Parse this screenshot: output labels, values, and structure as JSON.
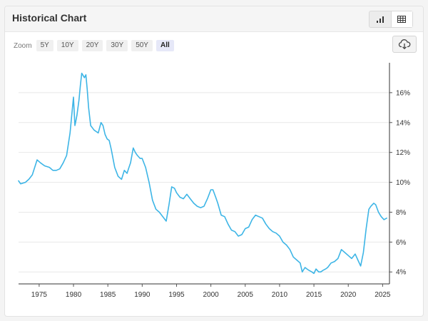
{
  "header": {
    "title": "Historical Chart",
    "bar_view_icon": "bar-chart-icon",
    "table_view_icon": "table-icon"
  },
  "zoom": {
    "label": "Zoom",
    "options": [
      "5Y",
      "10Y",
      "20Y",
      "30Y",
      "50Y",
      "All"
    ],
    "selected": "All"
  },
  "download_icon": "cloud-download-icon",
  "chart_data": {
    "type": "line",
    "title": "",
    "xlabel": "",
    "ylabel": "",
    "xlim": [
      1972,
      2026
    ],
    "ylim": [
      3.2,
      18.0
    ],
    "x_ticks": [
      1975,
      1980,
      1985,
      1990,
      1995,
      2000,
      2005,
      2010,
      2015,
      2020,
      2025
    ],
    "y_ticks": [
      4,
      6,
      8,
      10,
      12,
      14,
      16
    ],
    "y_tick_labels": [
      "4%",
      "6%",
      "8%",
      "10%",
      "12%",
      "14%",
      "16%"
    ],
    "grid": "horizontal",
    "line_color": "#3db5e6",
    "series": [
      {
        "x": [
          1972.0,
          1972.3,
          1973.0,
          1973.5,
          1974.0,
          1974.7,
          1975.2,
          1975.8,
          1976.5,
          1977.0,
          1977.5,
          1978.0,
          1978.5,
          1979.0,
          1979.5,
          1980.0,
          1980.2,
          1980.3,
          1980.5,
          1980.8,
          1981.0,
          1981.2,
          1981.6,
          1981.8,
          1982.0,
          1982.2,
          1982.5,
          1983.0,
          1983.3,
          1983.6,
          1984.0,
          1984.3,
          1984.6,
          1984.9,
          1985.2,
          1985.5,
          1986.0,
          1986.5,
          1987.0,
          1987.4,
          1987.8,
          1988.0,
          1988.3,
          1988.7,
          1989.0,
          1989.3,
          1989.7,
          1990.0,
          1990.5,
          1991.0,
          1991.5,
          1992.0,
          1992.5,
          1993.0,
          1993.5,
          1993.9,
          1994.3,
          1994.7,
          1995.0,
          1995.5,
          1996.0,
          1996.5,
          1997.0,
          1997.5,
          1998.0,
          1998.5,
          1999.0,
          1999.5,
          2000.0,
          2000.3,
          2000.7,
          2001.0,
          2001.5,
          2002.0,
          2002.5,
          2003.0,
          2003.5,
          2004.0,
          2004.5,
          2005.0,
          2005.5,
          2006.0,
          2006.5,
          2007.0,
          2007.5,
          2008.0,
          2008.5,
          2009.0,
          2009.5,
          2010.0,
          2010.5,
          2011.0,
          2011.5,
          2012.0,
          2012.5,
          2013.0,
          2013.3,
          2013.7,
          2014.0,
          2014.3,
          2014.7,
          2015.0,
          2015.3,
          2015.7,
          2016.0,
          2016.3,
          2016.7,
          2017.0,
          2017.5,
          2018.0,
          2018.5,
          2019.0,
          2019.5,
          2020.0,
          2020.5,
          2021.0,
          2021.4,
          2021.8,
          2022.2,
          2022.6,
          2023.0,
          2023.3,
          2023.7,
          2024.0,
          2024.4,
          2024.8,
          2025.2,
          2025.6
        ],
        "values": [
          10.1,
          9.9,
          10.0,
          10.2,
          10.5,
          11.5,
          11.3,
          11.1,
          11.0,
          10.8,
          10.8,
          10.9,
          11.3,
          11.8,
          13.3,
          15.7,
          13.8,
          14.0,
          14.5,
          15.5,
          16.5,
          17.3,
          17.0,
          17.2,
          16.2,
          15.0,
          13.8,
          13.5,
          13.4,
          13.3,
          14.0,
          13.8,
          13.2,
          12.9,
          12.8,
          12.2,
          11.0,
          10.4,
          10.2,
          10.8,
          10.6,
          10.9,
          11.3,
          12.3,
          12.0,
          11.8,
          11.6,
          11.6,
          11.0,
          10.0,
          8.8,
          8.2,
          8.0,
          7.7,
          7.4,
          8.5,
          9.7,
          9.6,
          9.3,
          9.0,
          8.9,
          9.2,
          8.9,
          8.6,
          8.4,
          8.3,
          8.4,
          8.9,
          9.5,
          9.5,
          9.0,
          8.6,
          7.8,
          7.7,
          7.2,
          6.8,
          6.7,
          6.4,
          6.5,
          6.9,
          7.0,
          7.5,
          7.8,
          7.7,
          7.6,
          7.2,
          6.9,
          6.7,
          6.6,
          6.4,
          6.0,
          5.8,
          5.5,
          5.0,
          4.8,
          4.6,
          4.0,
          4.3,
          4.2,
          4.1,
          4.0,
          3.9,
          4.2,
          4.0,
          4.0,
          4.1,
          4.2,
          4.3,
          4.6,
          4.7,
          4.9,
          5.5,
          5.3,
          5.1,
          4.9,
          5.2,
          4.8,
          4.4,
          5.3,
          6.9,
          8.2,
          8.4,
          8.6,
          8.5,
          8.0,
          7.7,
          7.5,
          7.6
        ]
      }
    ]
  }
}
